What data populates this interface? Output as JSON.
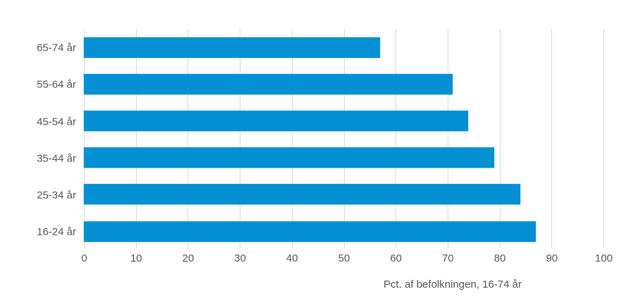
{
  "chart_data": {
    "type": "bar",
    "orientation": "horizontal",
    "title": "",
    "xlabel": "Pct. af befolkningen, 16-74 år",
    "ylabel": "",
    "categories": [
      "65-74 år",
      "55-64 år",
      "45-54 år",
      "35-44 år",
      "25-34 år",
      "16-24 år"
    ],
    "values": [
      57,
      71,
      74,
      79,
      84,
      87
    ],
    "xlim": [
      0,
      100
    ],
    "xticks": [
      0,
      10,
      20,
      30,
      40,
      50,
      60,
      70,
      80,
      90,
      100
    ],
    "grid": "vertical-only",
    "legend": "none",
    "colors": {
      "bar": "#0590d3",
      "gridline": "#d9d9d9",
      "text": "#555555"
    }
  }
}
